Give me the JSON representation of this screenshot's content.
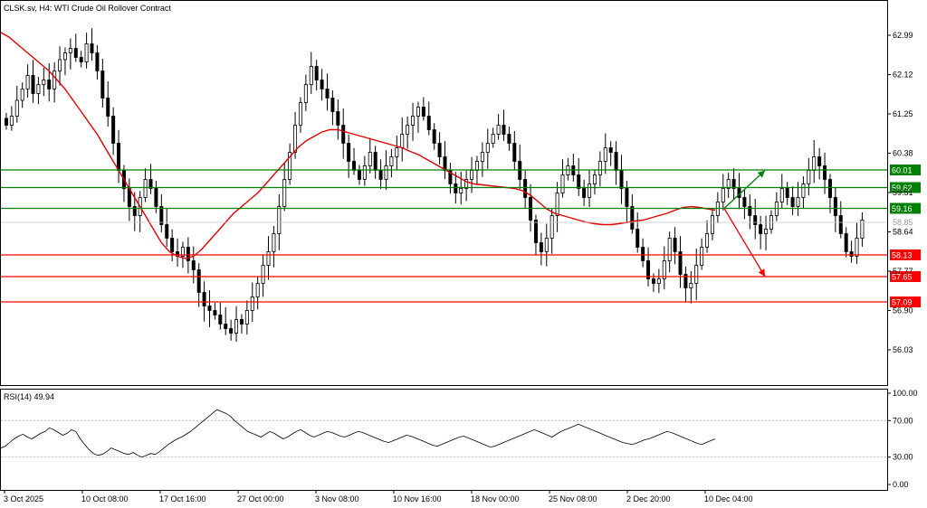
{
  "chart_data": {
    "type": "candlestick",
    "title": "CLSK.sv, H4:  WTI Crude Oil Rollover Contract",
    "price_ylim": [
      55.25,
      63.45
    ],
    "price_ticks": [
      "62.99",
      "62.12",
      "61.25",
      "60.38",
      "59.51",
      "58.64",
      "57.77",
      "56.90",
      "56.03"
    ],
    "current_price": "58.85",
    "x_labels": [
      "3 Oct 2025",
      "10 Oct 08:00",
      "17 Oct 16:00",
      "27 Oct 00:00",
      "3 Nov 08:00",
      "10 Nov 16:00",
      "18 Nov 00:00",
      "25 Nov 08:00",
      "2 Dec 20:00",
      "10 Dec 04:00"
    ],
    "levels": [
      {
        "label": "60.01",
        "value": 60.01,
        "color": "#008000"
      },
      {
        "label": "59.62",
        "value": 59.62,
        "color": "#008000"
      },
      {
        "label": "59.16",
        "value": 59.16,
        "color": "#008000"
      },
      {
        "label": "58.13",
        "value": 58.13,
        "color": "#ff0000"
      },
      {
        "label": "57.65",
        "value": 57.65,
        "color": "#ff0000"
      },
      {
        "label": "57.09",
        "value": 57.09,
        "color": "#ff0000"
      }
    ],
    "projections": [
      {
        "direction": "up",
        "from": 59.16,
        "to": 60.0,
        "color": "#008000"
      },
      {
        "direction": "down",
        "from": 59.16,
        "to": 57.65,
        "color": "#ff0000"
      }
    ],
    "close_series": [
      61.0,
      61.2,
      61.55,
      61.8,
      62.1,
      61.7,
      61.9,
      62.0,
      61.8,
      62.2,
      62.45,
      62.6,
      62.7,
      62.5,
      62.4,
      62.8,
      62.6,
      62.2,
      61.6,
      61.2,
      60.6,
      60.0,
      59.6,
      59.2,
      59.0,
      59.4,
      59.8,
      59.6,
      59.2,
      58.8,
      58.5,
      58.2,
      58.1,
      58.3,
      58.0,
      57.8,
      57.3,
      57.0,
      56.9,
      56.8,
      56.6,
      56.5,
      56.4,
      56.7,
      56.6,
      56.9,
      57.2,
      57.5,
      57.9,
      58.2,
      58.6,
      59.2,
      59.8,
      60.4,
      61.0,
      61.5,
      61.9,
      62.3,
      62.0,
      61.8,
      61.6,
      61.3,
      61.0,
      60.6,
      60.2,
      60.0,
      59.8,
      60.1,
      60.4,
      60.0,
      59.8,
      60.1,
      60.3,
      60.5,
      60.8,
      61.0,
      61.2,
      61.4,
      61.2,
      60.9,
      60.6,
      60.3,
      60.0,
      59.7,
      59.5,
      59.6,
      59.8,
      60.0,
      60.2,
      60.4,
      60.6,
      60.8,
      61.0,
      60.8,
      60.6,
      60.2,
      59.8,
      59.4,
      58.9,
      58.4,
      58.2,
      58.5,
      59.0,
      59.5,
      59.9,
      60.1,
      59.9,
      59.6,
      59.4,
      59.7,
      59.9,
      60.2,
      60.5,
      60.4,
      60.0,
      59.6,
      59.2,
      58.7,
      58.3,
      58.0,
      57.6,
      57.5,
      57.6,
      58.0,
      58.5,
      58.2,
      57.7,
      57.4,
      57.5,
      57.9,
      58.3,
      58.6,
      59.0,
      59.3,
      59.6,
      59.8,
      59.6,
      59.4,
      59.2,
      59.0,
      58.8,
      58.6,
      58.7,
      59.0,
      59.3,
      59.6,
      59.4,
      59.2,
      59.4,
      59.7,
      60.0,
      60.3,
      60.1,
      59.8,
      59.4,
      59.0,
      58.6,
      58.2,
      58.1,
      58.5,
      58.9
    ],
    "ma_series": [
      63.05,
      62.95,
      62.8,
      62.65,
      62.5,
      62.35,
      62.2,
      62.0,
      61.8,
      61.55,
      61.3,
      61.05,
      60.8,
      60.5,
      60.2,
      59.9,
      59.6,
      59.3,
      59.0,
      58.7,
      58.4,
      58.2,
      58.1,
      58.05,
      58.1,
      58.25,
      58.45,
      58.65,
      58.85,
      59.05,
      59.2,
      59.35,
      59.5,
      59.7,
      59.9,
      60.1,
      60.3,
      60.5,
      60.65,
      60.75,
      60.85,
      60.9,
      60.9,
      60.85,
      60.8,
      60.75,
      60.7,
      60.65,
      60.6,
      60.55,
      60.5,
      60.42,
      60.35,
      60.25,
      60.15,
      60.05,
      59.95,
      59.85,
      59.75,
      59.7,
      59.68,
      59.66,
      59.64,
      59.62,
      59.6,
      59.55,
      59.45,
      59.3,
      59.15,
      59.05,
      59.0,
      58.95,
      58.9,
      58.85,
      58.82,
      58.8,
      58.8,
      58.82,
      58.85,
      58.88,
      58.9,
      58.95,
      59.0,
      59.05,
      59.12,
      59.18,
      59.2,
      59.18,
      59.15,
      59.12
    ],
    "rsi": {
      "label": "RSI(14) 49.94",
      "ylim": [
        0,
        100
      ],
      "ticks": [
        "100.00",
        "70.00",
        "30.00",
        "0.00"
      ],
      "levels": [
        70,
        30
      ],
      "values": [
        40,
        42,
        46,
        50,
        53,
        55,
        52,
        50,
        53,
        56,
        58,
        62,
        60,
        57,
        54,
        56,
        60,
        58,
        50,
        44,
        38,
        34,
        32,
        33,
        36,
        40,
        38,
        36,
        34,
        33,
        35,
        32,
        30,
        32,
        34,
        33,
        36,
        40,
        44,
        47,
        50,
        52,
        55,
        58,
        62,
        66,
        70,
        74,
        78,
        82,
        80,
        78,
        75,
        70,
        66,
        62,
        58,
        56,
        54,
        52,
        55,
        58,
        56,
        53,
        50,
        52,
        55,
        58,
        60,
        57,
        54,
        52,
        54,
        56,
        58,
        57,
        55,
        53,
        52,
        54,
        56,
        58,
        57,
        55,
        53,
        51,
        49,
        47,
        46,
        48,
        50,
        52,
        54,
        53,
        51,
        49,
        47,
        45,
        43,
        42,
        44,
        46,
        48,
        50,
        52,
        53,
        51,
        49,
        47,
        45,
        43,
        41,
        42,
        44,
        46,
        48,
        50,
        52,
        54,
        56,
        58,
        60,
        58,
        56,
        54,
        52,
        55,
        58,
        60,
        62,
        64,
        66,
        64,
        62,
        60,
        58,
        56,
        54,
        52,
        50,
        48,
        46,
        45,
        44,
        45,
        47,
        49,
        50,
        52,
        54,
        56,
        58,
        57,
        55,
        53,
        51,
        49,
        47,
        45,
        44,
        46,
        48,
        49.94
      ]
    }
  }
}
